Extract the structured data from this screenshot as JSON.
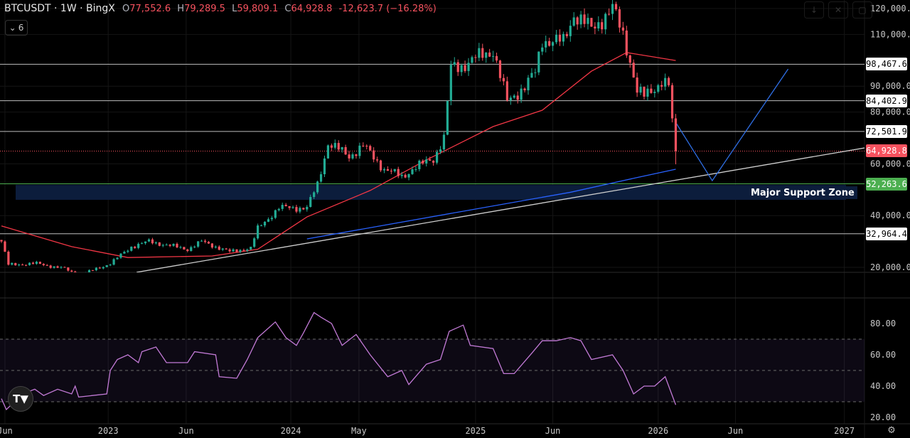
{
  "header": {
    "symbol": "BTCUSDT · 1W · BingX",
    "open_label": "O",
    "open": "77,552.6",
    "high_label": "H",
    "high": "79,289.5",
    "low_label": "L",
    "low": "59,809.1",
    "close_label": "C",
    "close": "64,928.8",
    "change": "-12,623.7 (−16.28%)",
    "indicators_count": "6",
    "indicators_chevron": "⌄"
  },
  "toolbar_icons": [
    "arrow-down-icon",
    "collapse-icon",
    "maximize-icon"
  ],
  "colors": {
    "up": "#22ab94",
    "down": "#f7525f",
    "ma_red": "#f23645",
    "ma_blue": "#2962ff",
    "rsi": "#c27ad6",
    "support": "#0c1d3c",
    "green_level": "#4caf50"
  },
  "price_axis": [
    "120,000.0",
    "110,000.0",
    "90,000.0",
    "80,000.0",
    "60,000.0",
    "40,000.0",
    "20,000.0"
  ],
  "price_axis_values": [
    120000,
    110000,
    90000,
    80000,
    60000,
    40000,
    20000
  ],
  "price_tags": [
    {
      "label": "98,467.6",
      "value": 98467.6,
      "style": "white"
    },
    {
      "label": "84,402.9",
      "value": 84402.9,
      "style": "white"
    },
    {
      "label": "72,501.9",
      "value": 72501.9,
      "style": "white"
    },
    {
      "label": "64,928.8",
      "value": 64928.8,
      "style": "red"
    },
    {
      "label": "52,263.6",
      "value": 52263.6,
      "style": "green"
    },
    {
      "label": "32,964.4",
      "value": 32964.4,
      "style": "white"
    }
  ],
  "support_zone": {
    "label": "Major Support Zone",
    "from": 46100,
    "to": 51900
  },
  "rsi_axis": [
    "80.00",
    "60.00",
    "40.00",
    "20.00"
  ],
  "rsi_axis_values": [
    80,
    60,
    40,
    20
  ],
  "time_axis": [
    {
      "label": "Jun",
      "week": 1
    },
    {
      "label": "2023",
      "week": 30.4
    },
    {
      "label": "Jun",
      "week": 52.6
    },
    {
      "label": "2024",
      "week": 82.4
    },
    {
      "label": "May",
      "week": 101.8
    },
    {
      "label": "2025",
      "week": 135
    },
    {
      "label": "Jun",
      "week": 157
    },
    {
      "label": "2026",
      "week": 187
    },
    {
      "label": "Jun",
      "week": 209
    },
    {
      "label": "2027",
      "week": 240
    }
  ],
  "logo_text": "TV",
  "settings_icon": "⚙",
  "chart_data": {
    "type": "candlestick",
    "interval": "1W",
    "close_path": [
      [
        0,
        30000
      ],
      [
        2,
        21000
      ],
      [
        10,
        21500
      ],
      [
        18,
        19500
      ],
      [
        22,
        16800
      ],
      [
        31,
        21500
      ],
      [
        37,
        28000
      ],
      [
        42,
        30000
      ],
      [
        53,
        27000
      ],
      [
        57,
        30000
      ],
      [
        65,
        26000
      ],
      [
        71,
        27500
      ],
      [
        73,
        35000
      ],
      [
        79,
        43000
      ],
      [
        87,
        43000
      ],
      [
        90,
        52000
      ],
      [
        93,
        68000
      ],
      [
        99,
        63000
      ],
      [
        103,
        67000
      ],
      [
        109,
        58000
      ],
      [
        114,
        55000
      ],
      [
        117,
        58000
      ],
      [
        123,
        62000
      ],
      [
        126,
        70000
      ],
      [
        128,
        97000
      ],
      [
        131,
        98000
      ],
      [
        140,
        104000
      ],
      [
        144,
        84000
      ],
      [
        149,
        90000
      ],
      [
        152,
        95000
      ],
      [
        154,
        108000
      ],
      [
        160,
        107000
      ],
      [
        163,
        118000
      ],
      [
        168,
        112000
      ],
      [
        174,
        120000
      ],
      [
        177,
        110000
      ],
      [
        179,
        100000
      ],
      [
        181,
        88000
      ],
      [
        183,
        86000
      ],
      [
        188,
        92000
      ],
      [
        190,
        90000
      ],
      [
        191,
        77552.6
      ]
    ],
    "last_candle": {
      "open": 77552.6,
      "high": 79289.5,
      "low": 59809.1,
      "close": 64928.8
    },
    "ma_red": [
      [
        0,
        36000
      ],
      [
        20,
        28000
      ],
      [
        36,
        23800
      ],
      [
        60,
        24400
      ],
      [
        73,
        27000
      ],
      [
        87,
        39500
      ],
      [
        105,
        49700
      ],
      [
        121,
        61500
      ],
      [
        140,
        74400
      ],
      [
        154,
        80700
      ],
      [
        168,
        95800
      ],
      [
        178,
        103000
      ],
      [
        192,
        99900
      ]
    ],
    "ma_blue": [
      [
        87,
        31000
      ],
      [
        162,
        49000
      ],
      [
        182,
        55000
      ],
      [
        192,
        57900
      ]
    ],
    "trendline": [
      [
        38.5,
        18100
      ],
      [
        246,
        66200
      ]
    ],
    "projection": [
      [
        192,
        76000
      ],
      [
        202.4,
        53500
      ],
      [
        224,
        96600
      ]
    ],
    "rsi": [
      [
        0,
        32
      ],
      [
        1.4,
        25
      ],
      [
        6,
        35
      ],
      [
        9.5,
        38
      ],
      [
        12,
        34
      ],
      [
        16,
        38
      ],
      [
        20,
        35
      ],
      [
        21,
        40
      ],
      [
        22,
        33
      ],
      [
        30,
        35
      ],
      [
        31,
        50
      ],
      [
        33,
        57
      ],
      [
        36,
        60
      ],
      [
        39,
        55
      ],
      [
        40,
        62
      ],
      [
        44,
        65
      ],
      [
        47,
        55
      ],
      [
        53,
        55
      ],
      [
        55,
        62
      ],
      [
        61,
        60
      ],
      [
        62,
        46
      ],
      [
        67,
        45
      ],
      [
        70,
        57
      ],
      [
        73,
        71
      ],
      [
        78,
        81
      ],
      [
        81,
        71
      ],
      [
        84,
        66
      ],
      [
        86,
        74
      ],
      [
        89,
        87
      ],
      [
        91,
        84
      ],
      [
        94,
        80
      ],
      [
        97,
        66
      ],
      [
        101,
        73
      ],
      [
        105,
        60
      ],
      [
        110,
        46
      ],
      [
        114,
        50
      ],
      [
        116,
        41
      ],
      [
        121,
        54
      ],
      [
        125,
        57
      ],
      [
        127.5,
        75
      ],
      [
        131.5,
        79
      ],
      [
        133.5,
        66
      ],
      [
        140,
        64
      ],
      [
        143,
        48
      ],
      [
        146,
        48
      ],
      [
        151,
        61
      ],
      [
        154,
        69
      ],
      [
        158,
        69
      ],
      [
        162,
        71
      ],
      [
        165,
        69
      ],
      [
        168,
        57
      ],
      [
        174,
        60
      ],
      [
        177,
        50
      ],
      [
        180,
        35
      ],
      [
        183,
        40
      ],
      [
        186,
        40
      ],
      [
        189,
        46
      ],
      [
        192,
        28
      ]
    ],
    "rsi_levels": {
      "upper": 70,
      "middle": 50,
      "lower": 30
    },
    "ylim": [
      20000,
      125000
    ]
  }
}
